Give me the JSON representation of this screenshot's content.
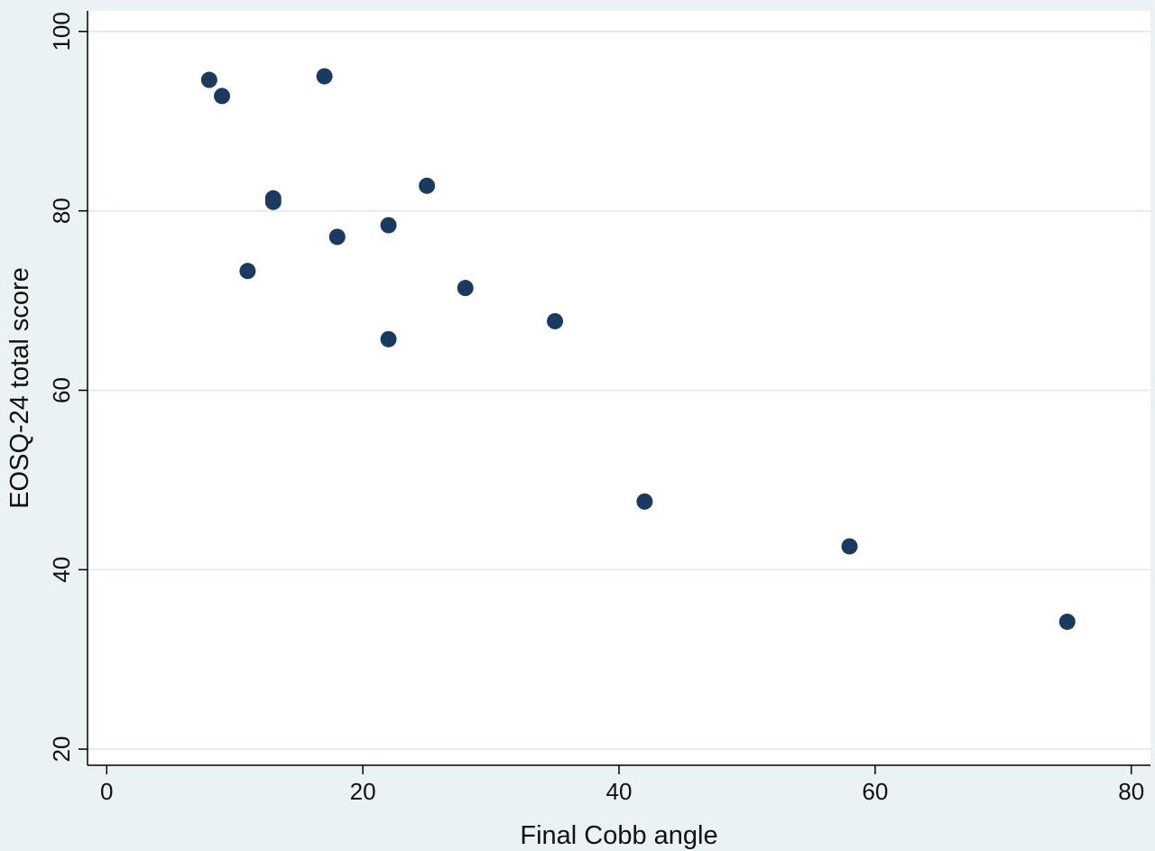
{
  "chart_data": {
    "type": "scatter",
    "xlabel": "Final Cobb angle",
    "ylabel": "EOSQ-24 total score",
    "xlim": [
      -1.5,
      81.5
    ],
    "ylim": [
      18.2,
      102.3
    ],
    "x_ticks": [
      0,
      20,
      40,
      60,
      80
    ],
    "y_ticks": [
      20,
      40,
      60,
      80,
      100
    ],
    "grid": "horizontal",
    "series": [
      {
        "points": [
          {
            "x": 8,
            "y": 94.6
          },
          {
            "x": 9,
            "y": 92.8
          },
          {
            "x": 11,
            "y": 73.3
          },
          {
            "x": 13,
            "y": 81.4
          },
          {
            "x": 13,
            "y": 81.0
          },
          {
            "x": 17,
            "y": 95.0
          },
          {
            "x": 18,
            "y": 77.1
          },
          {
            "x": 22,
            "y": 78.4
          },
          {
            "x": 22,
            "y": 65.7
          },
          {
            "x": 25,
            "y": 82.8
          },
          {
            "x": 28,
            "y": 71.4
          },
          {
            "x": 35,
            "y": 67.7
          },
          {
            "x": 42,
            "y": 47.6
          },
          {
            "x": 58,
            "y": 42.6
          },
          {
            "x": 75,
            "y": 34.2
          }
        ]
      }
    ],
    "colors": {
      "marker": "#1a3a5f",
      "background": "#eaf2f3",
      "plot_background": "#ffffff",
      "grid": "#e2ecef",
      "axis": "#000000"
    }
  }
}
